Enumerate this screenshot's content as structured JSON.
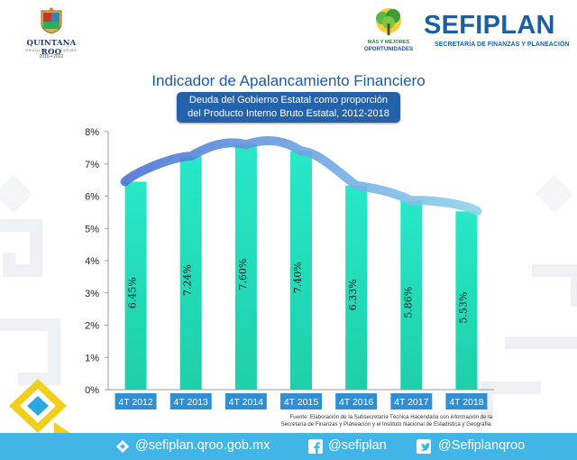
{
  "header": {
    "state_logo": {
      "name": "QUINTANA ROO",
      "motto": "ORGULLO DEL CARIBE",
      "years": "2016 • 2022"
    },
    "oportunidades_logo": {
      "line1": "MÁS Y MEJORES",
      "line2": "OPORTUNIDADES"
    },
    "org_name": "SEFIPLAN",
    "org_subtitle": "SECRETARÍA DE FINANZAS Y PLANEACIÓN"
  },
  "title": "Indicador de Apalancamiento Financiero",
  "subtitle_lines": [
    "Deuda del Gobierno Estatal como proporción",
    "del Producto Interno Bruto Estatal, 2012-2018"
  ],
  "chart_data": {
    "type": "bar",
    "title": "Indicador de Apalancamiento Financiero",
    "subtitle": "Deuda del Gobierno Estatal como proporción del Producto Interno Bruto Estatal, 2012-2018",
    "categories": [
      "4T 2012",
      "4T 2013",
      "4T 2014",
      "4T 2015",
      "4T 2016",
      "4T 2017",
      "4T 2018"
    ],
    "values": [
      6.45,
      7.24,
      7.6,
      7.4,
      6.33,
      5.86,
      5.53
    ],
    "data_labels": [
      "6.45%",
      "7.24%",
      "7.60%",
      "7.40%",
      "6.33%",
      "5.86%",
      "5.53%"
    ],
    "y_ticks": [
      "0%",
      "1%",
      "2%",
      "3%",
      "4%",
      "5%",
      "6%",
      "7%",
      "8%"
    ],
    "ylim": [
      0,
      8
    ],
    "trend_line": true,
    "grid": false,
    "colors": {
      "bar_top": "#27e8c8",
      "bar_bottom": "#1ecfa9",
      "trend_start": "#4a73d4",
      "trend_end": "#8fd2ec",
      "category_box": "#2f8fd6"
    }
  },
  "source_note": [
    "Fuente: Elaboración de la Subsecretaría Técnica Hacendaria con información de la",
    "Secretaría de Finanzas y Planeación y el Instituto Nacional de Estadística y Geografía."
  ],
  "footer": {
    "web": "@sefiplan.qroo.gob.mx",
    "facebook": "@sefiplan",
    "twitter": "@Sefiplanqroo",
    "background": "#42b5e7"
  }
}
